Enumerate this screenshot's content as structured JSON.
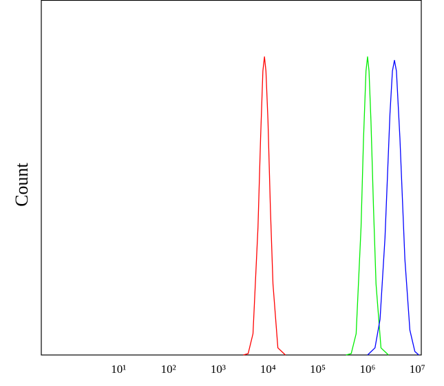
{
  "chart_data": {
    "type": "line",
    "y_label": "Count",
    "log_x": true,
    "xlim": [
      0.28,
      12000000
    ],
    "ylim": [
      0,
      100
    ],
    "xticks": [
      {
        "value": 10,
        "label": "10¹"
      },
      {
        "value": 100,
        "label": "10²"
      },
      {
        "value": 1000,
        "label": "10³"
      },
      {
        "value": 10000,
        "label": "10⁴"
      },
      {
        "value": 100000,
        "label": "10⁵"
      },
      {
        "value": 1000000,
        "label": "10⁶"
      },
      {
        "value": 10000000,
        "label": "10⁷"
      }
    ],
    "series": [
      {
        "color": "#ff0000",
        "x": [
          3200,
          4000,
          5000,
          6300,
          7100,
          7900,
          8500,
          9100,
          10000,
          11200,
          12600,
          15800,
          22400
        ],
        "values": [
          0,
          0.4,
          6,
          36,
          61,
          80,
          84,
          80,
          66,
          41,
          20,
          2,
          0
        ]
      },
      {
        "color": "#00ee00",
        "x": [
          370000,
          470000,
          590000,
          740000,
          830000,
          930000,
          1000000,
          1070000,
          1170000,
          1320000,
          1480000,
          1860000,
          2630000
        ],
        "values": [
          0,
          0.4,
          6,
          36,
          61,
          80,
          84,
          80,
          66,
          41,
          20,
          2,
          0
        ]
      },
      {
        "color": "#0000ff",
        "x": [
          1000000,
          1410000,
          1780000,
          2240000,
          2820000,
          3160000,
          3470000,
          3800000,
          4470000,
          5620000,
          7080000,
          8910000,
          10700000
        ],
        "values": [
          0,
          2,
          10,
          33,
          68,
          80,
          83,
          80,
          61,
          27,
          7,
          1,
          0
        ]
      }
    ]
  }
}
